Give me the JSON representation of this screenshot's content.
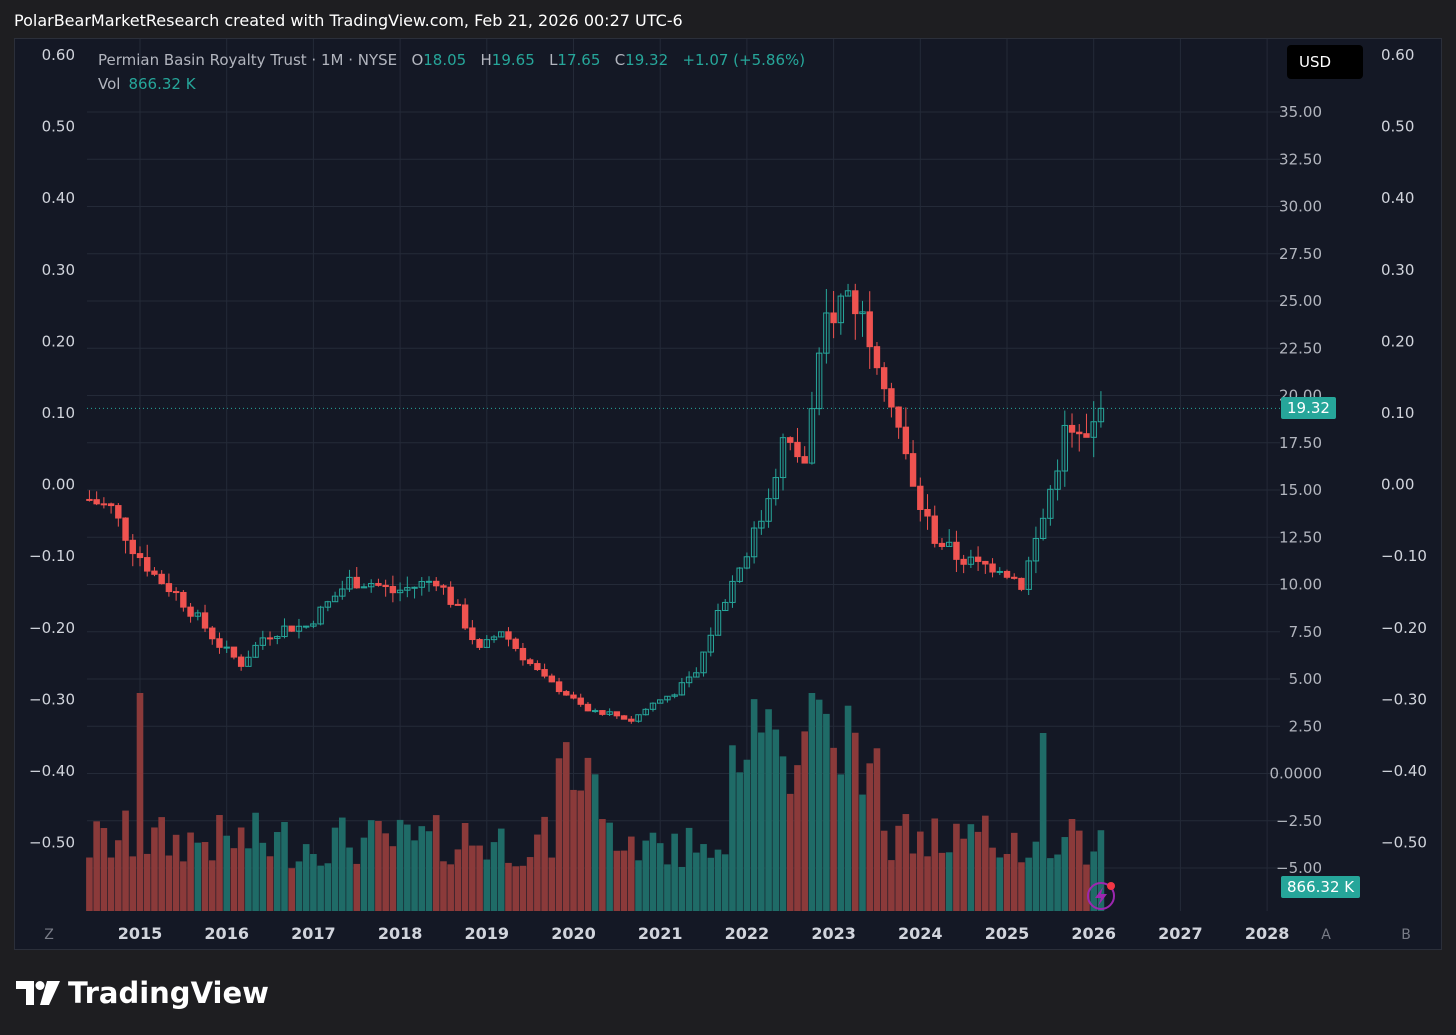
{
  "header": {
    "credit": "PolarBearMarketResearch created with TradingView.com, Feb 21, 2026 00:27 UTC-6"
  },
  "legend": {
    "symbol": "Permian Basin Royalty Trust · 1M · NYSE",
    "o_label": "O",
    "o": "18.05",
    "h_label": "H",
    "h": "19.65",
    "l_label": "L",
    "l": "17.65",
    "c_label": "C",
    "c": "19.32",
    "change": "+1.07 (+5.86%)",
    "vol_label": "Vol",
    "vol": "866.32 K"
  },
  "toolbar": {
    "currency": "USD"
  },
  "badges": {
    "last_price": "19.32",
    "last_volume": "866.32 K"
  },
  "corner_labels": {
    "z": "Z",
    "a": "A",
    "b": "B"
  },
  "footer": {
    "brand": "TradingView"
  },
  "colors": {
    "up": "#26a69a",
    "down": "#ef5350",
    "background": "#141825",
    "grid": "#242a38"
  },
  "chart_data": {
    "type": "candlestick",
    "interval": "1M",
    "x_ticks": [
      "2015",
      "2016",
      "2017",
      "2018",
      "2019",
      "2020",
      "2021",
      "2022",
      "2023",
      "2024",
      "2025",
      "2026",
      "2027",
      "2028"
    ],
    "y_ticks_price": [
      "35.00",
      "32.50",
      "30.00",
      "27.50",
      "25.00",
      "22.50",
      "20.00",
      "17.50",
      "15.00",
      "12.50",
      "10.00",
      "7.50",
      "5.00",
      "2.50",
      "0.0000",
      "−2.50",
      "−5.00"
    ],
    "y_ticks_secondary": [
      "0.60",
      "0.50",
      "0.40",
      "0.30",
      "0.20",
      "0.10",
      "0.00",
      "−0.10",
      "−0.20",
      "−0.30",
      "−0.40",
      "−0.50"
    ],
    "last_close": 19.32,
    "price_series": [
      {
        "date": "2014-06",
        "close": 14.5
      },
      {
        "date": "2014-09",
        "close": 14.0
      },
      {
        "date": "2014-12",
        "close": 12.0
      },
      {
        "date": "2015-03",
        "close": 10.5
      },
      {
        "date": "2015-06",
        "close": 9.5
      },
      {
        "date": "2015-09",
        "close": 8.2
      },
      {
        "date": "2015-12",
        "close": 6.8
      },
      {
        "date": "2016-03",
        "close": 5.8
      },
      {
        "date": "2016-06",
        "close": 7.2
      },
      {
        "date": "2016-09",
        "close": 7.7
      },
      {
        "date": "2016-12",
        "close": 7.8
      },
      {
        "date": "2017-03",
        "close": 9.0
      },
      {
        "date": "2017-06",
        "close": 10.2
      },
      {
        "date": "2017-09",
        "close": 10.1
      },
      {
        "date": "2017-12",
        "close": 9.6
      },
      {
        "date": "2018-03",
        "close": 9.9
      },
      {
        "date": "2018-06",
        "close": 10.3
      },
      {
        "date": "2018-09",
        "close": 8.6
      },
      {
        "date": "2018-12",
        "close": 6.5
      },
      {
        "date": "2019-03",
        "close": 7.6
      },
      {
        "date": "2019-06",
        "close": 6.2
      },
      {
        "date": "2019-09",
        "close": 5.0
      },
      {
        "date": "2019-12",
        "close": 4.2
      },
      {
        "date": "2020-03",
        "close": 3.3
      },
      {
        "date": "2020-06",
        "close": 3.2
      },
      {
        "date": "2020-09",
        "close": 2.8
      },
      {
        "date": "2020-12",
        "close": 3.7
      },
      {
        "date": "2021-03",
        "close": 4.3
      },
      {
        "date": "2021-06",
        "close": 5.3
      },
      {
        "date": "2021-09",
        "close": 8.5
      },
      {
        "date": "2021-12",
        "close": 11.0
      },
      {
        "date": "2022-03",
        "close": 13.5
      },
      {
        "date": "2022-06",
        "close": 17.5
      },
      {
        "date": "2022-09",
        "close": 16.5
      },
      {
        "date": "2022-12",
        "close": 24.0
      },
      {
        "date": "2023-03",
        "close": 25.5
      },
      {
        "date": "2023-06",
        "close": 23.5
      },
      {
        "date": "2023-09",
        "close": 20.0
      },
      {
        "date": "2023-12",
        "close": 15.0
      },
      {
        "date": "2024-03",
        "close": 12.5
      },
      {
        "date": "2024-06",
        "close": 11.5
      },
      {
        "date": "2024-09",
        "close": 11.0
      },
      {
        "date": "2024-12",
        "close": 11.0
      },
      {
        "date": "2025-03",
        "close": 10.0
      },
      {
        "date": "2025-06",
        "close": 13.5
      },
      {
        "date": "2025-09",
        "close": 18.0
      },
      {
        "date": "2025-12",
        "close": 17.5
      },
      {
        "date": "2026-02",
        "close": 19.32
      }
    ]
  }
}
